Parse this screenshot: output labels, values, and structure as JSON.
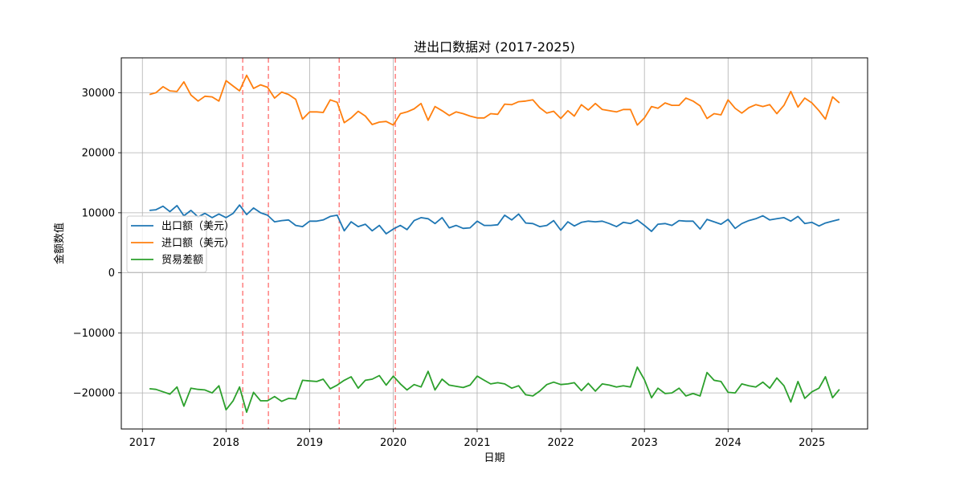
{
  "chart_data": {
    "type": "line",
    "title": "进出口数据对 (2017-2025)",
    "xlabel": "日期",
    "ylabel": "金额数值",
    "xlim": [
      "2016-10-01",
      "2025-09-01"
    ],
    "ylim": [
      -26000,
      35800
    ],
    "x_ticks": [
      "2017",
      "2018",
      "2019",
      "2020",
      "2021",
      "2022",
      "2023",
      "2024",
      "2025"
    ],
    "y_ticks": [
      30000,
      20000,
      10000,
      0,
      -10000,
      -20000
    ],
    "y_tick_labels": [
      "30000",
      "20000",
      "10000",
      "0",
      "−10000",
      "−20000"
    ],
    "grid": true,
    "legend": "center-left",
    "vlines": [
      "2018-03-15",
      "2018-07-05",
      "2019-05-10",
      "2020-01-10"
    ],
    "vline_color": "#ff7f7f",
    "start_month": "2017-02",
    "series": [
      {
        "name": "出口额（美元）",
        "color": "#1f77b4",
        "values": [
          10400,
          10500,
          11100,
          10200,
          11200,
          9500,
          10400,
          9300,
          9900,
          9200,
          9800,
          9200,
          9900,
          11300,
          9700,
          10800,
          10000,
          9600,
          8500,
          8700,
          8800,
          7900,
          7700,
          8600,
          8600,
          8800,
          9400,
          9600,
          7000,
          8500,
          7700,
          8100,
          7000,
          7900,
          6500,
          7300,
          7900,
          7200,
          8700,
          9200,
          9000,
          8200,
          9200,
          7500,
          7900,
          7400,
          7500,
          8600,
          7900,
          7900,
          8000,
          9600,
          8800,
          9800,
          8300,
          8200,
          7700,
          7900,
          8700,
          7100,
          8500,
          7800,
          8400,
          8600,
          8500,
          8600,
          8200,
          7700,
          8400,
          8200,
          8800,
          7900,
          6900,
          8100,
          8200,
          7900,
          8700,
          8600,
          8600,
          7300,
          8900,
          8500,
          8100,
          8900,
          7400,
          8200,
          8700,
          9000,
          9500,
          8800,
          9000,
          9200,
          8600,
          9400,
          8200,
          8400,
          7800,
          8300,
          8600,
          8900
        ]
      },
      {
        "name": "进口额（美元）",
        "color": "#ff7f0e",
        "values": [
          29700,
          30000,
          31000,
          30300,
          30200,
          31800,
          29600,
          28600,
          29400,
          29300,
          28600,
          32000,
          31100,
          30300,
          32900,
          30700,
          31300,
          30900,
          29100,
          30100,
          29700,
          28900,
          25600,
          26800,
          26800,
          26700,
          28800,
          28400,
          25000,
          25800,
          26900,
          26100,
          24700,
          25100,
          25200,
          24600,
          26500,
          26800,
          27300,
          28200,
          25400,
          27700,
          27000,
          26200,
          26800,
          26500,
          26100,
          25800,
          25800,
          26500,
          26400,
          28100,
          28000,
          28500,
          28600,
          28800,
          27500,
          26600,
          26900,
          25700,
          27000,
          26100,
          28000,
          27100,
          28200,
          27200,
          27000,
          26800,
          27200,
          27200,
          24600,
          25800,
          27700,
          27400,
          28300,
          27900,
          27900,
          29100,
          28600,
          27800,
          25700,
          26500,
          26300,
          28800,
          27400,
          26600,
          27500,
          28000,
          27700,
          28000,
          26500,
          27900,
          30200,
          27600,
          29100,
          28300,
          27000,
          25600,
          29300,
          28300
        ]
      },
      {
        "name": "贸易差额",
        "color": "#2ca02c",
        "values": [
          -19300,
          -19400,
          -19800,
          -20200,
          -19000,
          -22200,
          -19200,
          -19400,
          -19500,
          -20000,
          -18800,
          -22800,
          -21300,
          -19000,
          -23200,
          -19900,
          -21300,
          -21300,
          -20600,
          -21400,
          -20900,
          -21000,
          -17900,
          -18000,
          -18100,
          -17700,
          -19300,
          -18700,
          -17900,
          -17300,
          -19200,
          -17900,
          -17700,
          -17100,
          -18700,
          -17200,
          -18500,
          -19500,
          -18600,
          -19000,
          -16400,
          -19500,
          -17700,
          -18700,
          -18900,
          -19100,
          -18700,
          -17200,
          -17900,
          -18500,
          -18300,
          -18500,
          -19200,
          -18800,
          -20300,
          -20500,
          -19700,
          -18600,
          -18200,
          -18600,
          -18500,
          -18300,
          -19600,
          -18400,
          -19700,
          -18500,
          -18700,
          -19000,
          -18800,
          -19000,
          -15700,
          -17800,
          -20800,
          -19200,
          -20100,
          -20000,
          -19200,
          -20500,
          -20100,
          -20500,
          -16600,
          -17900,
          -18100,
          -19900,
          -20000,
          -18500,
          -18800,
          -19000,
          -18200,
          -19200,
          -17500,
          -18800,
          -21500,
          -18100,
          -20900,
          -19800,
          -19200,
          -17300,
          -20800,
          -19400
        ]
      }
    ]
  }
}
